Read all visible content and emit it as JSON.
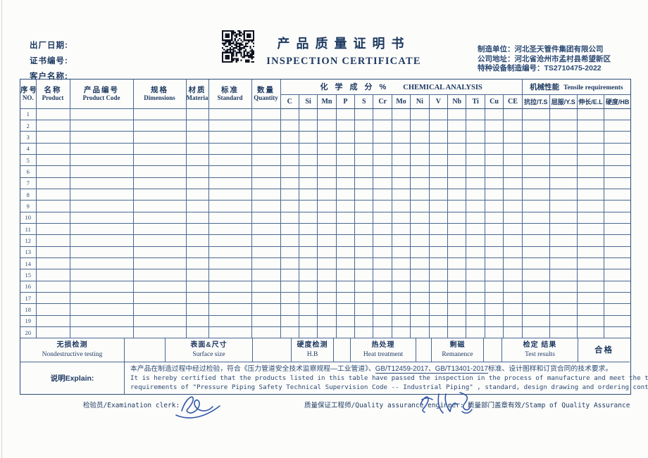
{
  "colors": {
    "ink": "#2b4a74",
    "line": "#4a6890",
    "signature_ink": "#2f57a6",
    "qr": "#10131f"
  },
  "header": {
    "factory_date_label": "出厂日期:",
    "certificate_no_label": "证书编号:",
    "customer_label": "客户名称:",
    "qr_icon": "qr-code",
    "title_cn": "产品质量证明书",
    "title_en": "INSPECTION CERTIFICATE",
    "maker_line1": "制造单位：河北圣天管件集团有限公司",
    "maker_line2": "公司地址：河北省沧州市孟村县希望新区",
    "maker_line3": "特种设备制造编号：TS2710475-2022"
  },
  "table": {
    "main_columns": [
      {
        "slug": "no",
        "cn": "序号",
        "en": "NO."
      },
      {
        "slug": "product",
        "cn": "名称",
        "en": "Product"
      },
      {
        "slug": "product-code",
        "cn": "产品编号",
        "en": "Product Code"
      },
      {
        "slug": "dimensions",
        "cn": "规格",
        "en": "Dimensions"
      },
      {
        "slug": "material",
        "cn": "材质",
        "en": "Material"
      },
      {
        "slug": "standard",
        "cn": "标准",
        "en": "Standard"
      },
      {
        "slug": "quantity",
        "cn": "数量",
        "en": "Quantity"
      }
    ],
    "chem_group_cn": "化学成分%",
    "chem_group_en": "CHEMICAL ANALYSIS",
    "chem_columns": [
      "C",
      "Si",
      "Mn",
      "P",
      "S",
      "Cr",
      "Mo",
      "Ni",
      "V",
      "Nb",
      "Ti",
      "Cu",
      "CE"
    ],
    "mech_group_cn": "机械性能",
    "mech_group_en": "Tensile requirements",
    "mech_columns": [
      "抗拉/T.S",
      "屈服/Y.S",
      "伸长/E.L",
      "硬度/HB"
    ],
    "row_numbers": [
      "1",
      "2",
      "3",
      "4",
      "5",
      "6",
      "7",
      "8",
      "9",
      "10",
      "11",
      "12",
      "13",
      "14",
      "15",
      "16",
      "17",
      "18",
      "19",
      "20"
    ]
  },
  "summary": {
    "cells": [
      {
        "slug": "nondestructive-testing-label",
        "cn": "无损检测",
        "en": "Nondestructive testing"
      },
      {
        "slug": "nondestructive-testing-value",
        "cn": "",
        "en": ""
      },
      {
        "slug": "surface-size-label",
        "cn": "表面&尺寸",
        "en": "Surface size"
      },
      {
        "slug": "surface-size-value",
        "cn": "",
        "en": ""
      },
      {
        "slug": "hardness-test-label",
        "cn": "硬度检测",
        "en": "H.B"
      },
      {
        "slug": "hardness-test-value",
        "cn": "",
        "en": ""
      },
      {
        "slug": "heat-treatment-label",
        "cn": "热处理",
        "en": "Heat treatment"
      },
      {
        "slug": "heat-treatment-value",
        "cn": "",
        "en": ""
      },
      {
        "slug": "remanence-label",
        "cn": "剩磁",
        "en": "Remanence"
      },
      {
        "slug": "remanence-value",
        "cn": "",
        "en": ""
      },
      {
        "slug": "test-results-label",
        "cn": "检定 结果",
        "en": "Test results"
      },
      {
        "slug": "test-result-value",
        "cn": "合格",
        "en": ""
      }
    ]
  },
  "explain": {
    "label": "说明Explain:",
    "cn_pre": "本产品在制造过程中经过检验，符合《压力管道安全技术监察规程—工业管道》、",
    "cn_underline": "GB/T12459-2017、GB/T13401-2017",
    "cn_post": "标准、设计图样和订货合同的技术要求。",
    "en_line1": "It is hereby certified that the products listed in this table have passed the inspection in the process of manufacture and meet the technical",
    "en_line2": "requirements of \"Pressure Piping Safety Technical Supervision Code -- Industrial Piping\" , standard, design drawing and ordering contract."
  },
  "footer": {
    "clerk_label": "检验员/Examination clerk:",
    "qa_engineer_label": "质量保证工程师/Quality assurance engineer:",
    "stamp_label": "质量部门盖章有效/Stamp of Quality Assurance"
  }
}
